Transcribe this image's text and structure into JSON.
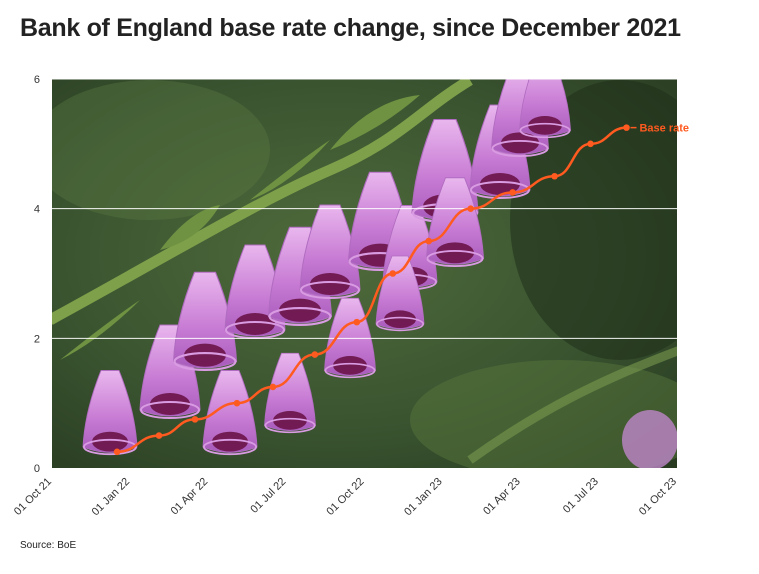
{
  "title": "Bank of England base rate change, since December 2021",
  "source": "Source: BoE",
  "chart_data": {
    "type": "line",
    "x_ticks": [
      "01 Oct 21",
      "01 Jan 22",
      "01 Apr 22",
      "01 Jul 22",
      "01 Oct 22",
      "01 Jan 23",
      "01 Apr 23",
      "01 Jul 23",
      "01 Oct 23"
    ],
    "y_ticks": [
      0,
      2,
      4,
      6
    ],
    "ylim": [
      0,
      6
    ],
    "xlim": [
      "2021-10-01",
      "2023-10-01"
    ],
    "grid": "horizontal",
    "background": "photo of purple foxglove flowers",
    "series": [
      {
        "name": "Base rate",
        "color": "#ff5a1f",
        "points": [
          {
            "x": "2021-12-16",
            "y": 0.25
          },
          {
            "x": "2022-02-03",
            "y": 0.5
          },
          {
            "x": "2022-03-17",
            "y": 0.75
          },
          {
            "x": "2022-05-05",
            "y": 1.0
          },
          {
            "x": "2022-06-16",
            "y": 1.25
          },
          {
            "x": "2022-08-04",
            "y": 1.75
          },
          {
            "x": "2022-09-22",
            "y": 2.25
          },
          {
            "x": "2022-11-03",
            "y": 3.0
          },
          {
            "x": "2022-12-15",
            "y": 3.5
          },
          {
            "x": "2023-02-02",
            "y": 4.0
          },
          {
            "x": "2023-03-23",
            "y": 4.25
          },
          {
            "x": "2023-05-11",
            "y": 4.5
          },
          {
            "x": "2023-06-22",
            "y": 5.0
          },
          {
            "x": "2023-08-03",
            "y": 5.25
          }
        ]
      }
    ]
  }
}
